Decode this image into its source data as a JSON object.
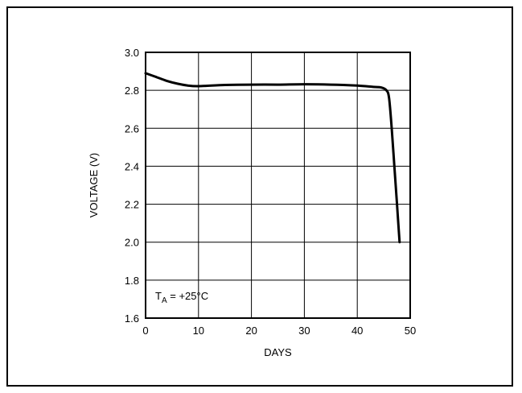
{
  "chart_data": {
    "type": "line",
    "title": "",
    "xlabel": "DAYS",
    "ylabel": "VOLTAGE (V)",
    "xlim": [
      0,
      50
    ],
    "ylim": [
      1.6,
      3.0
    ],
    "xticks": [
      "0",
      "10",
      "20",
      "30",
      "40",
      "50"
    ],
    "yticks": [
      "3.0",
      "2.8",
      "2.6",
      "2.4",
      "2.2",
      "2.0",
      "1.8",
      "1.6"
    ],
    "grid": true,
    "annotation": {
      "main": "T",
      "sub": "A",
      "rest": " = +25°C"
    },
    "series": [
      {
        "color": "#000000",
        "x": [
          0,
          2,
          4,
          6,
          8,
          10,
          15,
          20,
          25,
          30,
          35,
          40,
          43,
          44.5,
          45.5,
          46,
          46.5,
          47,
          47.5,
          48
        ],
        "y": [
          2.89,
          2.87,
          2.85,
          2.835,
          2.825,
          2.822,
          2.828,
          2.83,
          2.83,
          2.832,
          2.83,
          2.825,
          2.818,
          2.815,
          2.8,
          2.76,
          2.6,
          2.4,
          2.2,
          2.0
        ]
      }
    ]
  }
}
